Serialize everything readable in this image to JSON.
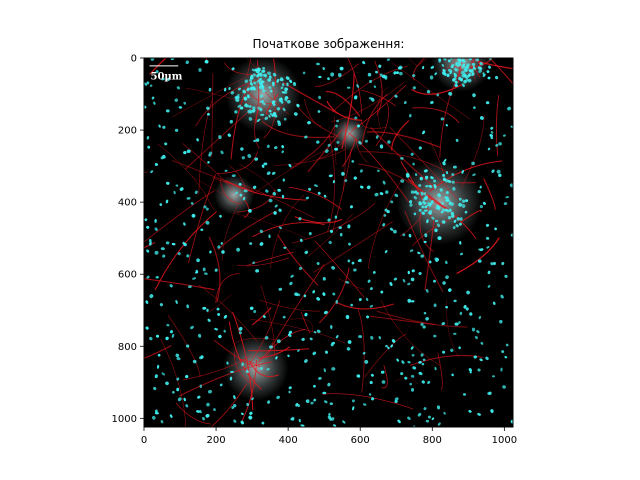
{
  "chart_data": {
    "type": "image",
    "title": "Початкове зображення:",
    "xlabel": "",
    "ylabel": "",
    "xlim": [
      0,
      1024
    ],
    "ylim": [
      1024,
      0
    ],
    "x_ticks": [
      0,
      200,
      400,
      600,
      800,
      1000
    ],
    "y_ticks": [
      0,
      200,
      400,
      600,
      800,
      1000
    ],
    "grid": false,
    "image_description_colors": {
      "background": "#000000",
      "nuclei": "#3ff0f0",
      "processes": "#e0151c",
      "cluster_glow": "#cfdede"
    },
    "scale_bar": {
      "label": "50µm",
      "length_um": 50
    }
  }
}
